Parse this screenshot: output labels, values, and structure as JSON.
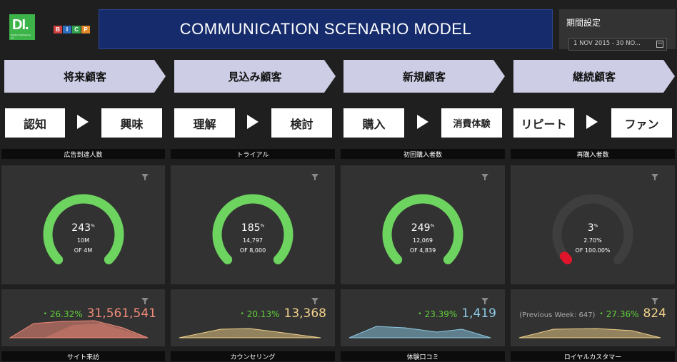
{
  "header": {
    "logo_di": "DI.",
    "logo_di_sub": "Digital Intelligence Inc.",
    "bicp_letters": [
      "B",
      "I",
      "C",
      "P"
    ],
    "bicp_colors": [
      "#d04040",
      "#2f6fc0",
      "#2fa14a",
      "#e08a2a"
    ],
    "title": "COMMUNICATION SCENARIO MODEL",
    "period_label": "期間設定",
    "period_value": "1 NOV 2015 - 30 NO..."
  },
  "stages": [
    "将来顧客",
    "見込み顧客",
    "新規顧客",
    "継続顧客"
  ],
  "steps": [
    "認知",
    "興味",
    "理解",
    "検討",
    "購入",
    "消費体験",
    "リピート",
    "ファン"
  ],
  "top_labels": [
    "広告到達人数",
    "トライアル",
    "初回購入者数",
    "再購入者数"
  ],
  "bottom_labels": [
    "サイト来訪",
    "カウンセリング",
    "体験口コミ",
    "ロイヤルカスタマー"
  ],
  "gauges": [
    {
      "pct": "243",
      "sup": "%",
      "line1": "10M",
      "line2": "OF 4M",
      "fill": 1.0,
      "color": "#6ed460"
    },
    {
      "pct": "185",
      "sup": "%",
      "line1": "14,797",
      "line2": "OF 8,000",
      "fill": 1.0,
      "color": "#6ed460"
    },
    {
      "pct": "249",
      "sup": "%",
      "line1": "12,069",
      "line2": "OF 4,839",
      "fill": 1.0,
      "color": "#6ed460"
    },
    {
      "pct": "3",
      "sup": "%",
      "line1": "2.70%",
      "line2": "OF 100.00%",
      "fill": 0.027,
      "color": "#e0142a"
    }
  ],
  "sparks": [
    {
      "prev": "",
      "change": "26.32%",
      "value": "31,561,541",
      "color": "#f08a78"
    },
    {
      "prev": "",
      "change": "20.13%",
      "value": "13,368",
      "color": "#f2d18a"
    },
    {
      "prev": "",
      "change": "23.39%",
      "value": "1,419",
      "color": "#8ecbe6"
    },
    {
      "prev": "(Previous Week: 647)",
      "change": "27.36%",
      "value": "824",
      "color": "#f2d18a"
    }
  ]
}
